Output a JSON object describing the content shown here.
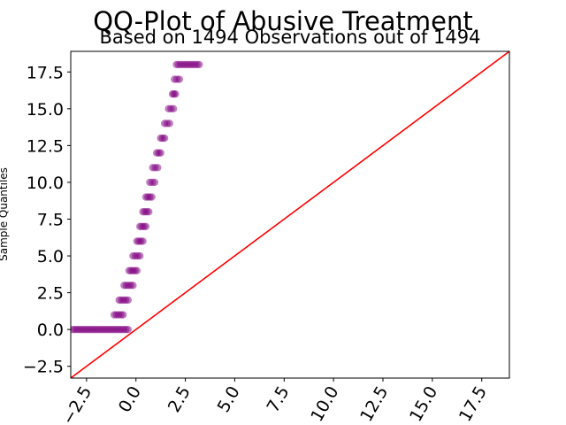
{
  "chart_data": {
    "type": "scatter",
    "title": "QQ-Plot of Abusive Treatment",
    "subtitle": "Based on 1494 Observations out of 1494",
    "xlabel": "",
    "ylabel": "Sample Quantiles",
    "xlim": [
      -3.3,
      18.9
    ],
    "ylim": [
      -3.3,
      18.9
    ],
    "x_ticks": [
      -2.5,
      0.0,
      2.5,
      5.0,
      7.5,
      10.0,
      12.5,
      15.0,
      17.5
    ],
    "x_tick_labels": [
      "−2.5",
      "0.0",
      "2.5",
      "5.0",
      "7.5",
      "10.0",
      "12.5",
      "15.0",
      "17.5"
    ],
    "y_ticks": [
      -2.5,
      0.0,
      2.5,
      5.0,
      7.5,
      10.0,
      12.5,
      15.0,
      17.5
    ],
    "y_tick_labels": [
      "−2.5",
      "0.0",
      "2.5",
      "5.0",
      "7.5",
      "10.0",
      "12.5",
      "15.0",
      "17.5"
    ],
    "grid": false,
    "series": [
      {
        "kind": "points",
        "color": "#800080",
        "segments": [
          {
            "y": 0,
            "x_from": -3.2,
            "x_to": -0.4
          },
          {
            "y": 1,
            "x_from": -1.1,
            "x_to": -0.65
          },
          {
            "y": 2,
            "x_from": -0.85,
            "x_to": -0.4
          },
          {
            "y": 3,
            "x_from": -0.6,
            "x_to": -0.15
          },
          {
            "y": 4,
            "x_from": -0.35,
            "x_to": 0.05
          },
          {
            "y": 5,
            "x_from": -0.15,
            "x_to": 0.2
          },
          {
            "y": 6,
            "x_from": 0.05,
            "x_to": 0.35
          },
          {
            "y": 7,
            "x_from": 0.2,
            "x_to": 0.5
          },
          {
            "y": 8,
            "x_from": 0.35,
            "x_to": 0.65
          },
          {
            "y": 9,
            "x_from": 0.5,
            "x_to": 0.8
          },
          {
            "y": 10,
            "x_from": 0.7,
            "x_to": 0.95
          },
          {
            "y": 11,
            "x_from": 0.85,
            "x_to": 1.1
          },
          {
            "y": 12,
            "x_from": 1.05,
            "x_to": 1.25
          },
          {
            "y": 13,
            "x_from": 1.25,
            "x_to": 1.45
          },
          {
            "y": 14,
            "x_from": 1.45,
            "x_to": 1.7
          },
          {
            "y": 15,
            "x_from": 1.65,
            "x_to": 1.9
          },
          {
            "y": 16,
            "x_from": 1.85,
            "x_to": 2.0
          },
          {
            "y": 17,
            "x_from": 1.95,
            "x_to": 2.2
          },
          {
            "y": 18,
            "x_from": 2.05,
            "x_to": 3.2
          }
        ]
      },
      {
        "kind": "reference-line",
        "color": "#ff0000",
        "x": [
          -3.3,
          18.9
        ],
        "y": [
          -3.3,
          18.9
        ]
      }
    ]
  }
}
